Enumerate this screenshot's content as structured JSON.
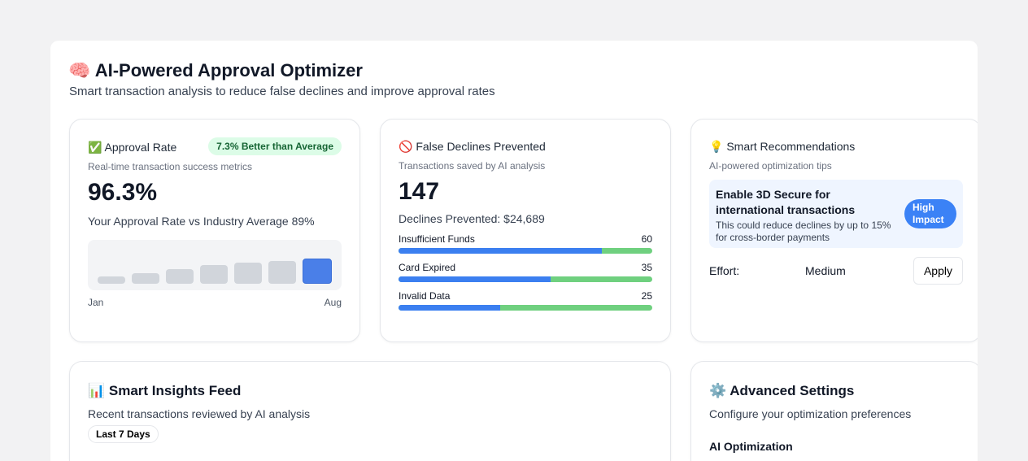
{
  "header": {
    "icon": "brain-icon",
    "title": "🧠 AI-Powered Approval Optimizer",
    "subtitle": "Smart transaction analysis to reduce false declines and improve approval rates"
  },
  "approval": {
    "title": "✅ Approval Rate",
    "badge": "7.3% Better than Average",
    "subtitle": "Real-time transaction success metrics",
    "value": "96.3%",
    "comparison": "Your Approval Rate vs Industry Average 89%",
    "start_label": "Jan",
    "end_label": "Aug",
    "bars": [
      30,
      43,
      57,
      73,
      83,
      90,
      100
    ]
  },
  "declines": {
    "title": "🚫 False Declines Prevented",
    "subtitle": "Transactions saved by AI analysis",
    "value": "147",
    "prevented": "Declines Prevented: $24,689",
    "items": [
      {
        "label": "Insufficient Funds",
        "count": "60",
        "percent": 80
      },
      {
        "label": "Card Expired",
        "count": "35",
        "percent": 60
      },
      {
        "label": "Invalid Data",
        "count": "25",
        "percent": 40
      }
    ]
  },
  "recs": {
    "title": "💡 Smart Recommendations",
    "subtitle": "AI-powered optimization tips",
    "rec_title": "Enable 3D Secure for international transactions",
    "rec_desc": "This could reduce declines by up to 15% for cross-border payments",
    "impact": "High Impact",
    "effort_label": "Effort:",
    "effort_value": "Medium",
    "apply": "Apply"
  },
  "insights": {
    "title": "📊 Smart Insights Feed",
    "subtitle": "Recent transactions reviewed by AI analysis",
    "filter": "Last 7 Days"
  },
  "settings": {
    "title": "⚙️ Advanced Settings",
    "subtitle": "Configure your optimization preferences",
    "section": "AI Optimization"
  }
}
